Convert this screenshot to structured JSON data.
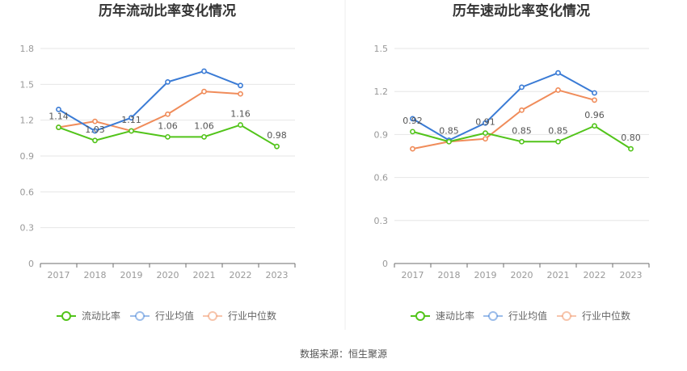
{
  "source_text": "数据来源：恒生聚源",
  "chart_data": [
    {
      "type": "line",
      "title": "历年流动比率变化情况",
      "categories": [
        "2017",
        "2018",
        "2019",
        "2020",
        "2021",
        "2022",
        "2023"
      ],
      "ylim": [
        0,
        1.8
      ],
      "yticks": [
        "0",
        "0.3",
        "0.6",
        "0.9",
        "1.2",
        "1.5",
        "1.8"
      ],
      "legend_position": "bottom",
      "grid": true,
      "series": [
        {
          "name": "流动比率",
          "color": "#52c41a",
          "values": [
            1.14,
            1.03,
            1.11,
            1.06,
            1.06,
            1.16,
            0.98
          ],
          "labels": [
            "1.14",
            "1.03",
            "1.11",
            "1.06",
            "1.06",
            "1.16",
            "0.98"
          ]
        },
        {
          "name": "行业均值",
          "color": "#3a7bd5",
          "values": [
            1.29,
            1.11,
            1.22,
            1.52,
            1.61,
            1.49,
            null
          ]
        },
        {
          "name": "行业中位数",
          "color": "#f08c5a",
          "values": [
            1.14,
            1.19,
            1.11,
            1.25,
            1.44,
            1.42,
            null
          ]
        }
      ]
    },
    {
      "type": "line",
      "title": "历年速动比率变化情况",
      "categories": [
        "2017",
        "2018",
        "2019",
        "2020",
        "2021",
        "2022",
        "2023"
      ],
      "ylim": [
        0,
        1.5
      ],
      "yticks": [
        "0",
        "0.3",
        "0.6",
        "0.9",
        "1.2",
        "1.5"
      ],
      "legend_position": "bottom",
      "grid": true,
      "series": [
        {
          "name": "速动比率",
          "color": "#52c41a",
          "values": [
            0.92,
            0.85,
            0.91,
            0.85,
            0.85,
            0.96,
            0.8
          ],
          "labels": [
            "0.92",
            "0.85",
            "0.91",
            "0.85",
            "0.85",
            "0.96",
            "0.80"
          ]
        },
        {
          "name": "行业均值",
          "color": "#3a7bd5",
          "values": [
            1.01,
            0.86,
            0.98,
            1.23,
            1.33,
            1.19,
            null
          ]
        },
        {
          "name": "行业中位数",
          "color": "#f08c5a",
          "values": [
            0.8,
            0.85,
            0.87,
            1.07,
            1.21,
            1.14,
            null
          ]
        }
      ]
    }
  ]
}
